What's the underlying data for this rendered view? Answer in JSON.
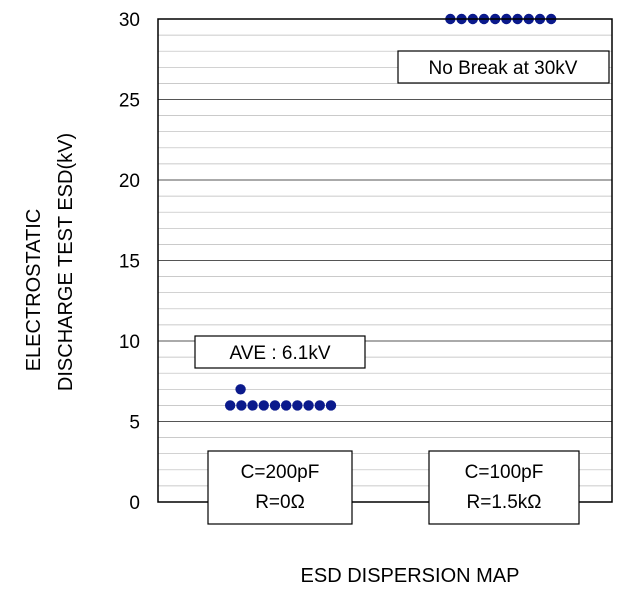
{
  "chart_data": {
    "type": "scatter",
    "title": "ESD DISPERSION MAP",
    "ylabel": [
      "ELECTROSTATIC",
      "DISCHARGE TEST ESD(kV)"
    ],
    "xlabel": "",
    "ylim": [
      0,
      30
    ],
    "yticks": [
      0,
      5,
      10,
      15,
      20,
      25,
      30
    ],
    "minor_grid_step": 1,
    "grid": true,
    "groups": [
      {
        "condition": [
          "C=200pF",
          "R=0Ω"
        ],
        "annotation": "AVE : 6.1kV",
        "values": [
          7,
          6,
          6,
          6,
          6,
          6,
          6,
          6,
          6,
          6,
          6
        ]
      },
      {
        "condition": [
          "C=100pF",
          "R=1.5kΩ"
        ],
        "annotation": "No Break at 30kV",
        "values": [
          30,
          30,
          30,
          30,
          30,
          30,
          30,
          30,
          30,
          30
        ]
      }
    ],
    "marker_color": "#0b1a8c"
  }
}
